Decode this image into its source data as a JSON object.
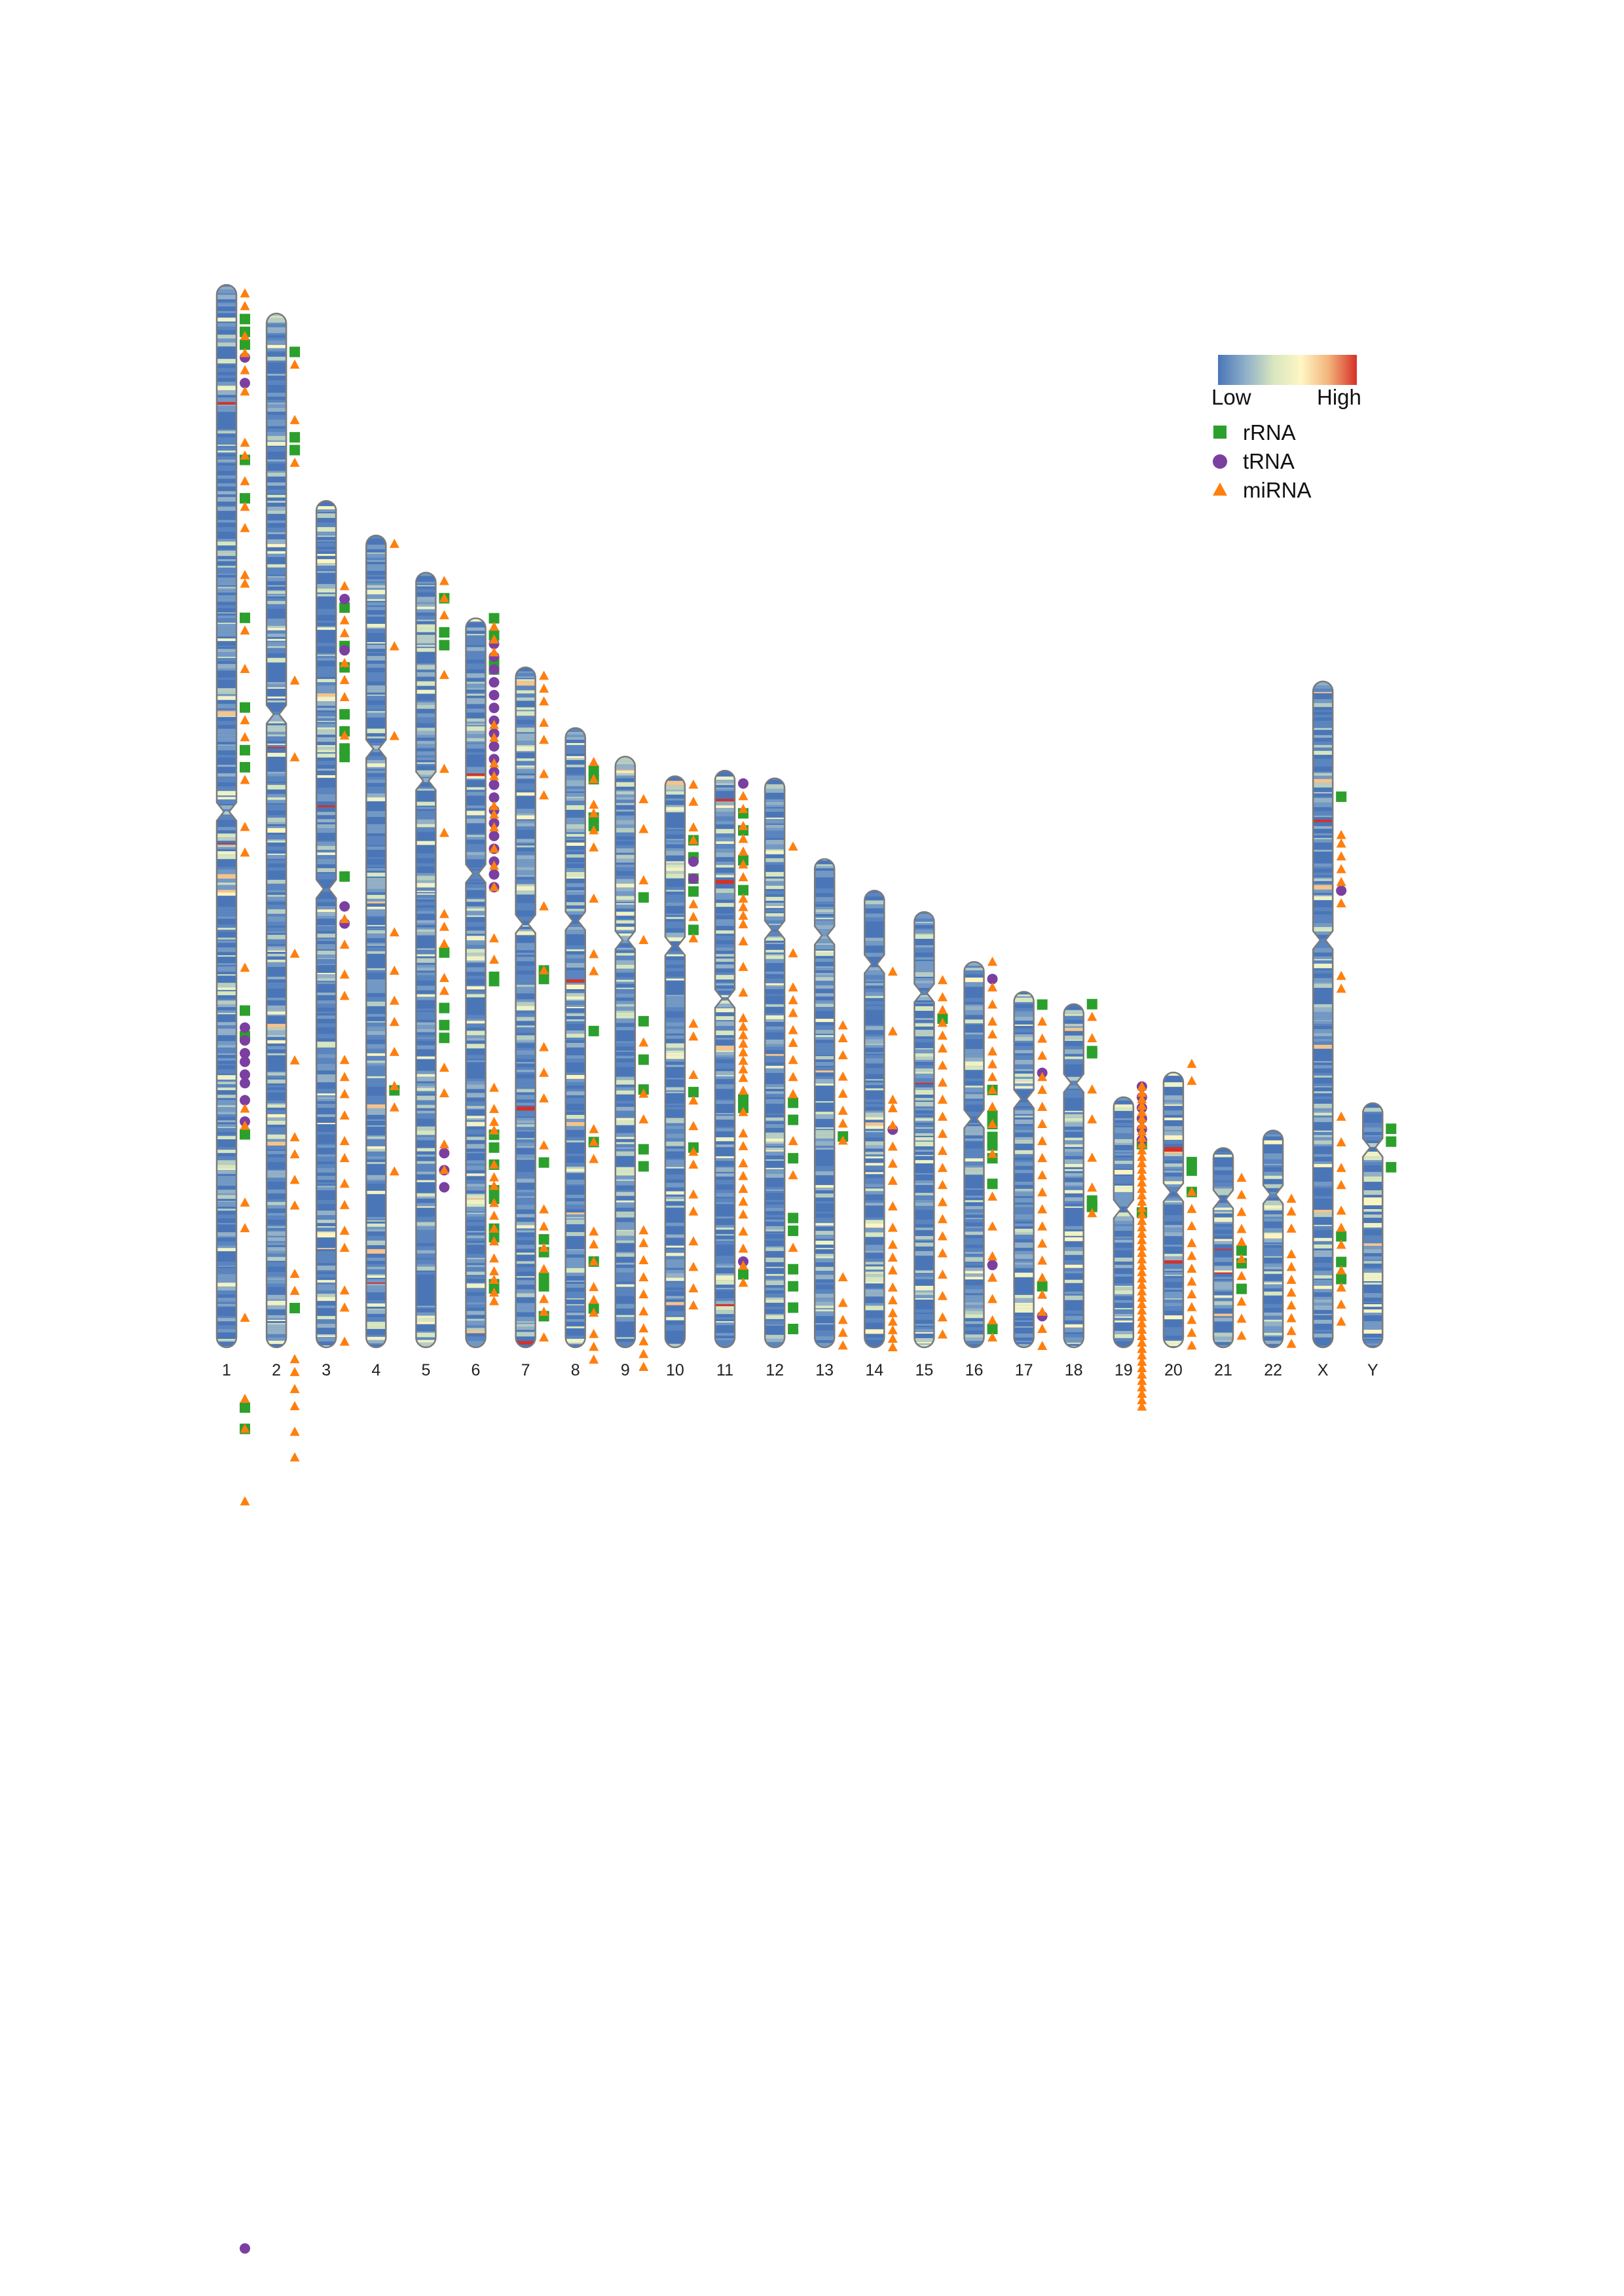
{
  "chart_data": {
    "type": "karyogram",
    "title": "",
    "legend": {
      "scale_low": "Low",
      "scale_high": "High",
      "scale_colors": [
        "#4a76b8",
        "#8fb0c9",
        "#d8e6bf",
        "#fff6c4",
        "#f2b27a",
        "#d73027"
      ],
      "items": [
        {
          "name": "rRNA",
          "marker": "square",
          "color": "#2ca02c"
        },
        {
          "name": "tRNA",
          "marker": "circle",
          "color": "#7b3fa0"
        },
        {
          "name": "miRNA",
          "marker": "triangle",
          "color": "#ff7f0e"
        }
      ]
    },
    "chromosome_colors": {
      "base": "#4a76b8",
      "outline": "#7a7a7a"
    },
    "chromosomes": [
      {
        "name": "1",
        "length": 248.9,
        "centromere": 123.4,
        "rRNA": [
          8,
          11,
          14,
          41,
          50,
          78,
          99,
          109,
          113,
          170,
          176,
          199,
          263,
          268
        ],
        "tRNA": [
          17,
          23,
          174,
          177,
          180,
          182,
          185,
          187,
          191,
          196,
          460
        ],
        "miRNA": [
          2,
          5,
          12,
          16,
          20,
          25,
          37,
          40,
          46,
          52,
          57,
          68,
          70,
          81,
          90,
          102,
          106,
          116,
          127,
          133,
          160,
          193,
          197,
          215,
          221,
          242,
          261,
          268,
          285
        ]
      },
      {
        "name": "2",
        "length": 242.2,
        "centromere": 93.9,
        "rRNA": [
          9,
          29,
          32,
          233
        ],
        "tRNA": [],
        "miRNA": [
          12,
          25,
          35,
          86,
          104,
          150,
          175,
          193,
          197,
          203,
          209,
          225,
          229,
          245,
          248,
          252,
          256,
          262,
          268
        ]
      },
      {
        "name": "3",
        "length": 198.3,
        "centromere": 90.9,
        "rRNA": [
          25,
          34,
          39,
          50,
          54,
          58,
          60,
          88
        ],
        "tRNA": [
          23,
          35,
          95,
          99
        ],
        "miRNA": [
          20,
          28,
          31,
          38,
          42,
          46,
          55,
          98,
          104,
          111,
          116,
          131,
          135,
          139,
          144,
          150,
          154,
          160,
          165,
          171,
          175,
          185,
          189,
          197
        ]
      },
      {
        "name": "4",
        "length": 190.2,
        "centromere": 50.0,
        "rRNA": [
          130
        ],
        "tRNA": [],
        "miRNA": [
          2,
          26,
          47,
          93,
          102,
          109,
          114,
          121,
          129,
          134,
          149
        ]
      },
      {
        "name": "5",
        "length": 181.5,
        "centromere": 48.8,
        "rRNA": [
          6,
          14,
          17,
          89,
          102,
          106,
          109
        ],
        "tRNA": [
          136,
          140,
          144
        ],
        "miRNA": [
          2,
          6,
          10,
          24,
          46,
          61,
          80,
          83,
          87,
          95,
          98,
          116,
          122,
          134,
          140
        ]
      },
      {
        "name": "6",
        "length": 170.8,
        "centromere": 59.8,
        "rRNA": [
          0,
          4,
          10,
          12,
          84,
          85,
          121,
          124,
          128,
          134,
          136,
          143,
          145,
          156,
          157
        ],
        "tRNA": [
          6,
          9,
          12,
          15,
          18,
          21,
          24,
          27,
          30,
          33,
          36,
          39,
          42,
          45,
          48,
          51,
          54,
          57,
          60,
          63
        ],
        "miRNA": [
          2,
          5,
          8,
          25,
          28,
          34,
          37,
          44,
          46,
          49,
          54,
          58,
          63,
          75,
          80,
          110,
          115,
          118,
          120,
          128,
          131,
          133,
          137,
          140,
          143,
          146,
          150,
          153,
          155,
          158,
          160
        ]
      },
      {
        "name": "7",
        "length": 159.3,
        "centromere": 60.1,
        "rRNA": [
          71,
          73,
          116,
          134,
          137,
          143,
          145,
          152
        ],
        "tRNA": [],
        "miRNA": [
          2,
          5,
          8,
          13,
          17,
          25,
          30,
          56,
          71,
          89,
          95,
          101,
          112,
          127,
          131,
          136,
          141,
          148,
          151,
          157
        ]
      },
      {
        "name": "8",
        "length": 145.1,
        "centromere": 45.2,
        "rRNA": [
          10,
          12,
          21,
          23,
          71,
          97,
          125,
          136
        ],
        "tRNA": [],
        "miRNA": [
          8,
          12,
          18,
          20,
          24,
          28,
          40,
          53,
          57,
          94,
          97,
          101,
          118,
          121,
          125,
          131,
          134,
          137,
          142,
          145,
          148
        ]
      },
      {
        "name": "9",
        "length": 138.4,
        "centromere": 43.0,
        "rRNA": [
          33,
          62,
          71,
          78,
          92,
          96
        ],
        "tRNA": [],
        "miRNA": [
          10,
          17,
          29,
          43,
          67,
          79,
          85,
          111,
          114,
          118,
          122,
          126,
          130,
          134,
          137,
          140,
          143
        ]
      },
      {
        "name": "10",
        "length": 133.8,
        "centromere": 39.8,
        "rRNA": [
          15,
          19,
          24,
          27,
          36,
          74,
          87
        ],
        "tRNA": [
          20,
          24
        ],
        "miRNA": [
          2,
          6,
          12,
          15,
          30,
          33,
          38,
          58,
          61,
          70,
          76,
          82,
          88,
          91,
          98,
          102,
          109,
          115,
          120,
          124
        ]
      },
      {
        "name": "11",
        "length": 135.1,
        "centromere": 53.4,
        "rRNA": [
          10,
          14,
          21,
          28,
          77,
          79,
          118
        ],
        "tRNA": [
          3,
          115
        ],
        "miRNA": [
          6,
          9,
          13,
          16,
          19,
          22,
          25,
          30,
          32,
          34,
          36,
          40,
          46,
          52,
          58,
          60,
          62,
          64,
          66,
          68,
          70,
          72,
          75,
          80,
          85,
          88,
          92,
          95,
          98,
          101,
          104,
          108,
          112,
          116,
          120
        ]
      },
      {
        "name": "12",
        "length": 133.3,
        "centromere": 35.5,
        "rRNA": [
          76,
          80,
          89,
          103,
          106,
          115,
          119,
          124,
          129
        ],
        "tRNA": [],
        "miRNA": [
          16,
          41,
          49,
          52,
          55,
          59,
          62,
          66,
          70,
          74,
          85,
          93,
          110
        ]
      },
      {
        "name": "13",
        "length": 114.4,
        "centromere": 17.9,
        "rRNA": [
          65
        ],
        "tRNA": [],
        "miRNA": [
          39,
          42,
          46,
          51,
          55,
          59,
          62,
          66,
          98,
          104,
          108,
          111,
          114
        ]
      },
      {
        "name": "14",
        "length": 107.0,
        "centromere": 17.2,
        "rRNA": [],
        "tRNA": [
          56
        ],
        "miRNA": [
          19,
          33,
          49,
          51,
          55,
          60,
          64,
          68,
          74,
          79,
          83,
          86,
          89,
          93,
          96,
          99,
          101,
          103,
          105,
          107
        ]
      },
      {
        "name": "15",
        "length": 102.0,
        "centromere": 19.0,
        "rRNA": [
          25
        ],
        "tRNA": [],
        "miRNA": [
          16,
          20,
          23,
          26,
          29,
          32,
          36,
          40,
          44,
          48,
          52,
          56,
          60,
          64,
          68,
          72,
          76,
          80,
          85,
          90,
          95,
          99
        ]
      },
      {
        "name": "16",
        "length": 90.3,
        "centromere": 36.8,
        "rRNA": [
          30,
          36,
          38,
          41,
          43,
          46,
          52,
          86
        ],
        "tRNA": [
          4,
          71
        ],
        "miRNA": [
          0,
          6,
          10,
          14,
          17,
          21,
          24,
          27,
          30,
          34,
          38,
          45,
          55,
          62,
          69,
          74,
          79,
          84,
          88
        ]
      },
      {
        "name": "17",
        "length": 83.3,
        "centromere": 25.1,
        "rRNA": [
          3,
          69
        ],
        "tRNA": [
          19,
          76
        ],
        "miRNA": [
          7,
          11,
          15,
          20,
          23,
          27,
          31,
          35,
          39,
          43,
          47,
          51,
          55,
          59,
          63,
          67,
          71,
          75,
          79,
          83
        ]
      },
      {
        "name": "18",
        "length": 80.4,
        "centromere": 18.5,
        "rRNA": [
          0,
          11,
          11.5,
          46,
          47,
          47.5
        ],
        "tRNA": [],
        "miRNA": [
          3,
          8,
          20,
          27,
          36,
          43,
          49
        ]
      },
      {
        "name": "19",
        "length": 58.6,
        "centromere": 26.2,
        "rRNA": [
          11,
          27
        ],
        "tRNA": [
          -2.5,
          0,
          2.5,
          5,
          7.5,
          10
        ],
        "miRNA": [
          -2.5,
          -1,
          0.5,
          2,
          3.5,
          5,
          6.5,
          8,
          9.5,
          11,
          12.5,
          14,
          15.5,
          17,
          18.5,
          20,
          21.5,
          23,
          24.5,
          26,
          27.5,
          29,
          30.5,
          32,
          33.5,
          35,
          36.5,
          38,
          39.5,
          41,
          42.5,
          44,
          45.5,
          47,
          48.5,
          50,
          51.5,
          53,
          54.5,
          56,
          57.5,
          59,
          60.5,
          62,
          63.5,
          65,
          66.5,
          68,
          69.5,
          71,
          72.5
        ]
      },
      {
        "name": "20",
        "length": 64.4,
        "centromere": 28.1,
        "rRNA": [
          21,
          23,
          28
        ],
        "tRNA": [],
        "miRNA": [
          -2,
          2,
          28,
          32,
          36,
          40,
          43,
          46,
          49,
          52,
          55,
          58,
          61,
          64
        ]
      },
      {
        "name": "21",
        "length": 46.7,
        "centromere": 12.0,
        "rRNA": [
          24,
          27,
          33
        ],
        "tRNA": [],
        "miRNA": [
          7,
          11,
          15,
          19,
          22,
          26,
          30,
          36,
          40,
          44
        ]
      },
      {
        "name": "22",
        "length": 50.8,
        "centromere": 15.0,
        "rRNA": [],
        "tRNA": [],
        "miRNA": [
          16,
          19,
          23,
          29,
          32,
          35,
          38,
          41,
          44,
          47,
          50
        ]
      },
      {
        "name": "X",
        "length": 156.0,
        "centromere": 60.6,
        "rRNA": [
          27,
          130,
          136,
          140
        ],
        "tRNA": [
          49
        ],
        "miRNA": [
          36,
          38,
          41,
          44,
          47,
          52,
          69,
          72,
          102,
          108,
          114,
          118,
          124,
          128,
          132,
          138,
          142,
          146,
          150
        ]
      },
      {
        "name": "Y",
        "length": 57.2,
        "centromere": 10.4,
        "rRNA": [
          6,
          9,
          15
        ],
        "tRNA": [],
        "miRNA": []
      }
    ]
  }
}
